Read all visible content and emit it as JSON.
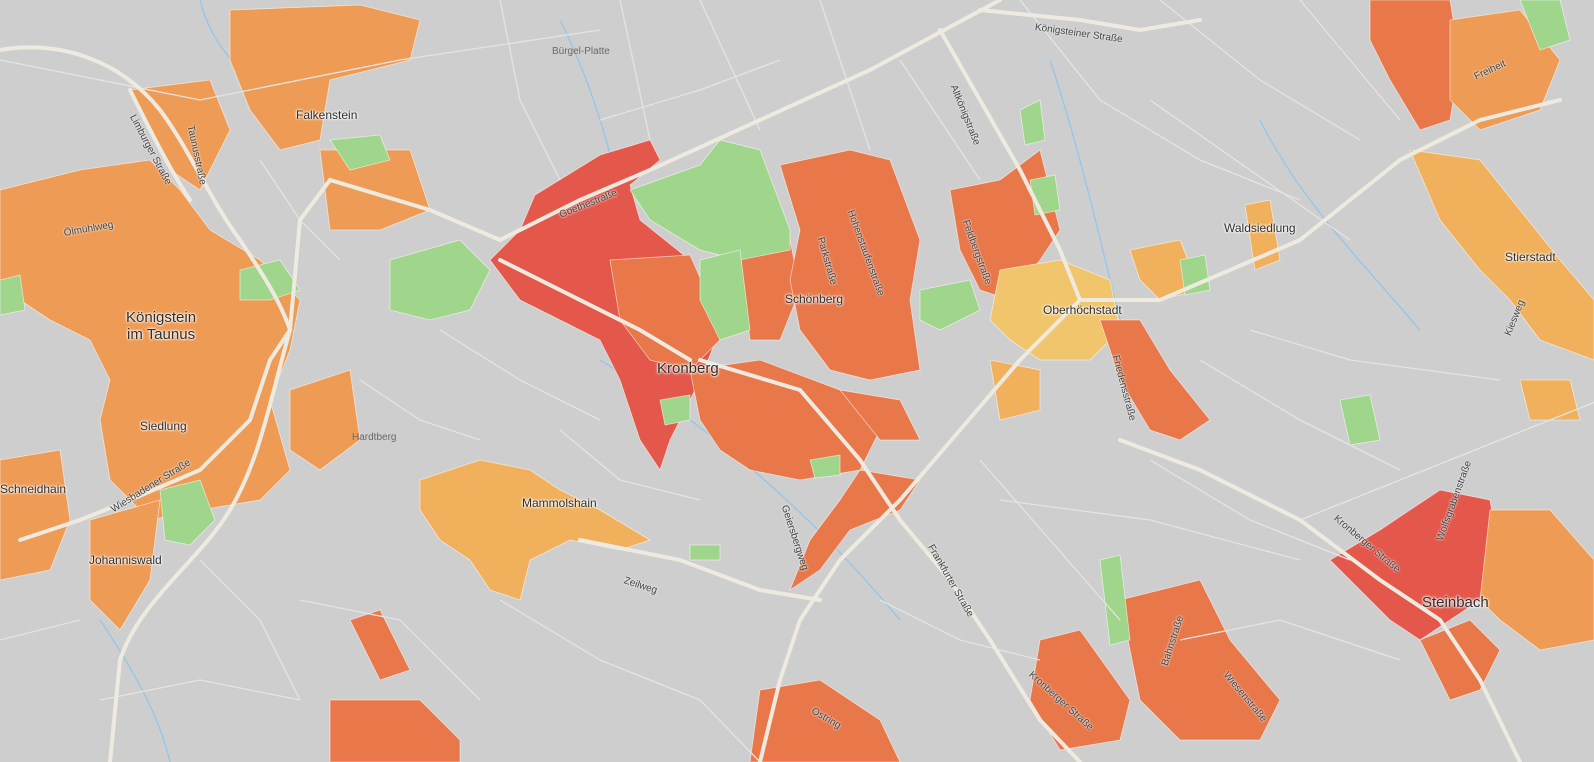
{
  "map": {
    "colors": {
      "background": "#cecece",
      "road_major": "#eeeae0",
      "road_minor": "#e4e4e4",
      "water": "#8ec6ea",
      "red": "#e4584b",
      "orange_red": "#e8784a",
      "orange": "#ee9b55",
      "light_orange": "#f0b05c",
      "yellow": "#f1c56c",
      "green": "#9fd68c"
    },
    "places": {
      "koenigstein": "Königstein\nim Taunus",
      "kronberg": "Kronberg",
      "falkenstein": "Falkenstein",
      "schoenberg": "Schönberg",
      "oberhoechstadt": "Oberhöchstadt",
      "siedlung": "Siedlung",
      "schneidhain": "Schneidhain",
      "johanniswald": "Johanniswald",
      "mammolshain": "Mammolshain",
      "waldsiedlung": "Waldsiedlung",
      "stierstadt": "Stierstadt",
      "steinbach": "Steinbach",
      "freiheit": "Freiheit",
      "buergel_platte": "Bürgel-Platte",
      "hardtberg": "Hardtberg",
      "oelmuehlweg": "Ölmühlweg"
    },
    "streets": {
      "koenigsteiner": "Königsteiner Straße",
      "altkoenig": "Altkönigstraße",
      "limburger": "Limburger Straße",
      "wiesbadener": "Wiesbadener Straße",
      "frankfurter": "Frankfurter Straße",
      "kronberger_1": "Kronberger Straße",
      "kronberger_2": "Kronberger Straße",
      "geiersberg": "Geiersbergweg",
      "zeilweg": "Zeilweg",
      "friedens": "Friedensstraße",
      "park": "Parkstraße",
      "bahn": "Bahnstraße",
      "wiesen": "Wiesenstraße",
      "ostring": "Ostring",
      "kiesweg": "Kiesweg",
      "goethe": "Goethestraße",
      "hohenstaufen": "Hohenstaufenstraße",
      "taunus": "Taunusstraße",
      "feldberg": "Feldbergstraße",
      "wolfsgraben": "Wolfsgrabenstraße"
    }
  }
}
